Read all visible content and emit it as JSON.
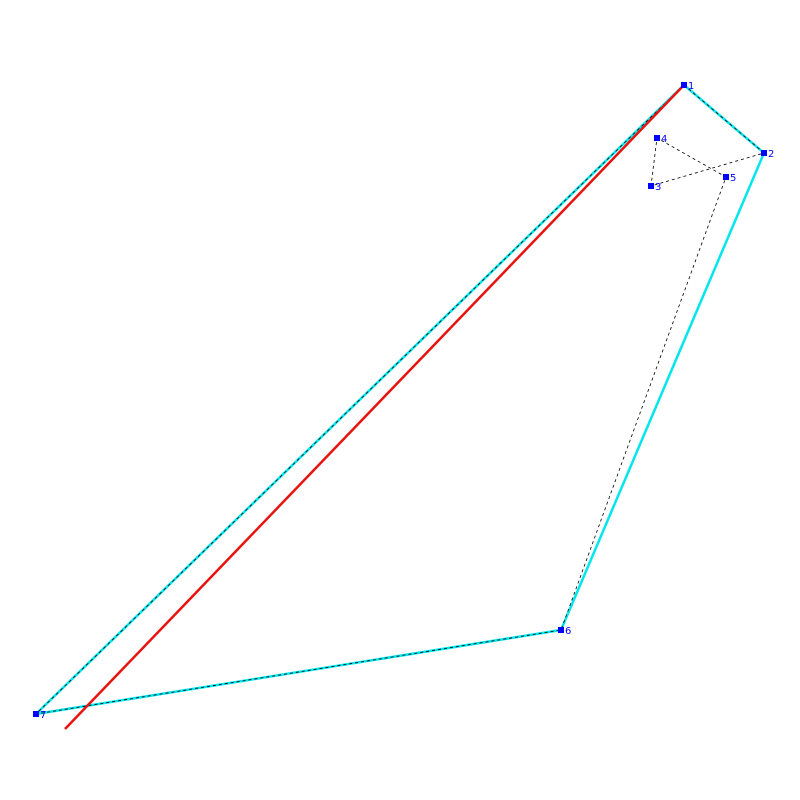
{
  "nodes": [
    {
      "label": "1"
    },
    {
      "label": "2"
    },
    {
      "label": "3"
    },
    {
      "label": "4"
    },
    {
      "label": "5"
    },
    {
      "label": "6"
    },
    {
      "label": "7"
    }
  ]
}
